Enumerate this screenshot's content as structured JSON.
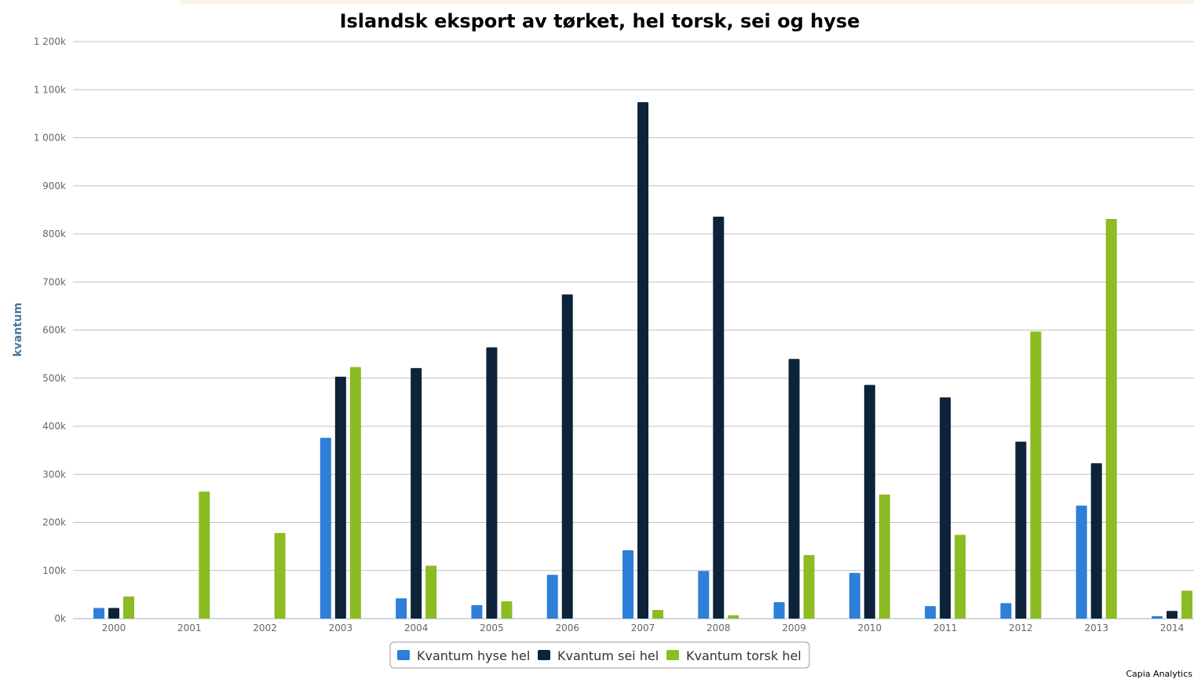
{
  "chart_data": {
    "type": "bar",
    "title": "Islandsk eksport av tørket, hel torsk, sei og hyse",
    "xlabel": "",
    "ylabel": "kvantum",
    "ylim": [
      0,
      1200000
    ],
    "yticks": [
      0,
      100000,
      200000,
      300000,
      400000,
      500000,
      600000,
      700000,
      800000,
      900000,
      1000000,
      1100000,
      1200000
    ],
    "ytick_labels": [
      "0k",
      "100k",
      "200k",
      "300k",
      "400k",
      "500k",
      "600k",
      "700k",
      "800k",
      "900k",
      "1 000k",
      "1 100k",
      "1 200k"
    ],
    "grid": true,
    "legend_position": "bottom-center",
    "categories": [
      "2000",
      "2001",
      "2002",
      "2003",
      "2004",
      "2005",
      "2006",
      "2007",
      "2008",
      "2009",
      "2010",
      "2011",
      "2012",
      "2013",
      "2014"
    ],
    "series": [
      {
        "name": "Kvantum hyse hel",
        "color": "#2f7ed8",
        "values": [
          22000,
          0,
          0,
          376000,
          42000,
          28000,
          91000,
          142000,
          99000,
          34000,
          95000,
          26000,
          32000,
          235000,
          5000
        ]
      },
      {
        "name": "Kvantum sei hel",
        "color": "#0d233a",
        "values": [
          22000,
          0,
          0,
          503000,
          521000,
          564000,
          674000,
          1074000,
          836000,
          540000,
          486000,
          460000,
          368000,
          323000,
          16000
        ]
      },
      {
        "name": "Kvantum torsk hel",
        "color": "#8bbc21",
        "values": [
          46000,
          264000,
          178000,
          523000,
          110000,
          36000,
          0,
          18000,
          7000,
          132000,
          258000,
          174000,
          597000,
          831000,
          58000
        ]
      }
    ]
  },
  "credit": "Capia Analytics"
}
